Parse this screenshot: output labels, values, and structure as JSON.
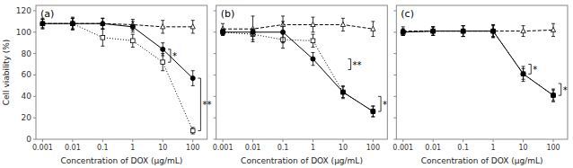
{
  "chart_data": [
    {
      "type": "line",
      "title": "(a)",
      "xlabel": "Concentration of DOX (μg/mL)",
      "ylabel": "Cell viability (%)",
      "log": "x",
      "x": [
        0.001,
        0.01,
        0.1,
        1,
        10,
        100
      ],
      "xlim": [
        0.0006,
        300
      ],
      "xticks": [
        0.001,
        0.01,
        0.1,
        1,
        10,
        100
      ],
      "ylim": [
        0,
        125
      ],
      "yticks": [
        0,
        20,
        40,
        60,
        80,
        100,
        120
      ],
      "series": [
        {
          "color": "black",
          "marker": "triangle-open",
          "line_style": "dashed",
          "values": [
            108,
            108,
            108,
            107,
            105,
            105
          ],
          "errors": [
            4,
            5,
            5,
            5,
            6,
            6
          ]
        },
        {
          "color": "black",
          "marker": "square-open",
          "line_style": "dotted",
          "values": [
            108,
            108,
            95,
            92,
            72,
            8
          ],
          "errors": [
            5,
            6,
            8,
            6,
            8,
            3
          ]
        },
        {
          "color": "black",
          "marker": "circle",
          "line_style": "solid",
          "values": [
            108,
            108,
            108,
            105,
            84,
            57
          ],
          "errors": [
            4,
            5,
            5,
            5,
            6,
            7
          ]
        }
      ],
      "brackets": [
        {
          "x": 10,
          "y": [
            72,
            84
          ],
          "label": "*"
        },
        {
          "x": 100,
          "y": [
            8,
            57
          ],
          "label": "**"
        }
      ]
    },
    {
      "type": "line",
      "title": "(b)",
      "xlabel": "Concentration of DOX (μg/mL)",
      "tick_labels": "x",
      "log": "x",
      "x": [
        0.001,
        0.01,
        0.1,
        1,
        10,
        100
      ],
      "xlim": [
        0.0006,
        300
      ],
      "xticks": [
        0.001,
        0.01,
        0.1,
        1,
        10,
        100
      ],
      "ylim": [
        0,
        125
      ],
      "yticks": [
        0,
        20,
        40,
        60,
        80,
        100,
        120
      ],
      "series": [
        {
          "color": "black",
          "marker": "triangle-open",
          "line_style": "dashed",
          "values": [
            103,
            103,
            107,
            107,
            107,
            103
          ],
          "errors": [
            5,
            12,
            8,
            7,
            6,
            7
          ]
        },
        {
          "color": "black",
          "marker": "square-open",
          "line_style": "dotted",
          "values": [
            100,
            98,
            93,
            92,
            44,
            26
          ],
          "errors": [
            3,
            5,
            8,
            6,
            6,
            5
          ]
        },
        {
          "color": "black",
          "marker": "circle",
          "line_style": "solid",
          "values": [
            100,
            100,
            100,
            75,
            44,
            26
          ],
          "errors": [
            3,
            3,
            10,
            6,
            5,
            5
          ]
        }
      ],
      "brackets": [
        {
          "x": 10,
          "y": [
            65,
            75
          ],
          "label": "**"
        },
        {
          "x": 100,
          "y": [
            26,
            40
          ],
          "label": "*"
        }
      ]
    },
    {
      "type": "line",
      "title": "(c)",
      "xlabel": "Concentration of DOX (μg/mL)",
      "tick_labels": "x",
      "log": "x",
      "x": [
        0.001,
        0.01,
        0.1,
        1,
        10,
        100
      ],
      "xlim": [
        0.0006,
        300
      ],
      "xticks": [
        0.001,
        0.01,
        0.1,
        1,
        10,
        100
      ],
      "ylim": [
        0,
        125
      ],
      "yticks": [
        0,
        20,
        40,
        60,
        80,
        100,
        120
      ],
      "series": [
        {
          "color": "black",
          "marker": "triangle-open",
          "line_style": "dashed",
          "values": [
            101,
            101,
            101,
            101,
            101,
            102
          ],
          "errors": [
            4,
            4,
            5,
            5,
            5,
            6
          ]
        },
        {
          "color": "black",
          "marker": "square-open",
          "line_style": "dotted",
          "values": [
            100,
            101,
            101,
            101,
            61,
            41
          ],
          "errors": [
            3,
            4,
            5,
            6,
            7,
            6
          ]
        },
        {
          "color": "black",
          "marker": "circle",
          "line_style": "solid",
          "values": [
            100,
            101,
            101,
            101,
            61,
            41
          ],
          "errors": [
            3,
            4,
            5,
            6,
            5,
            5
          ]
        }
      ],
      "brackets": [
        {
          "x": 10,
          "y": [
            61,
            70
          ],
          "label": "*"
        },
        {
          "x": 100,
          "y": [
            41,
            52
          ],
          "label": "*"
        }
      ]
    }
  ]
}
